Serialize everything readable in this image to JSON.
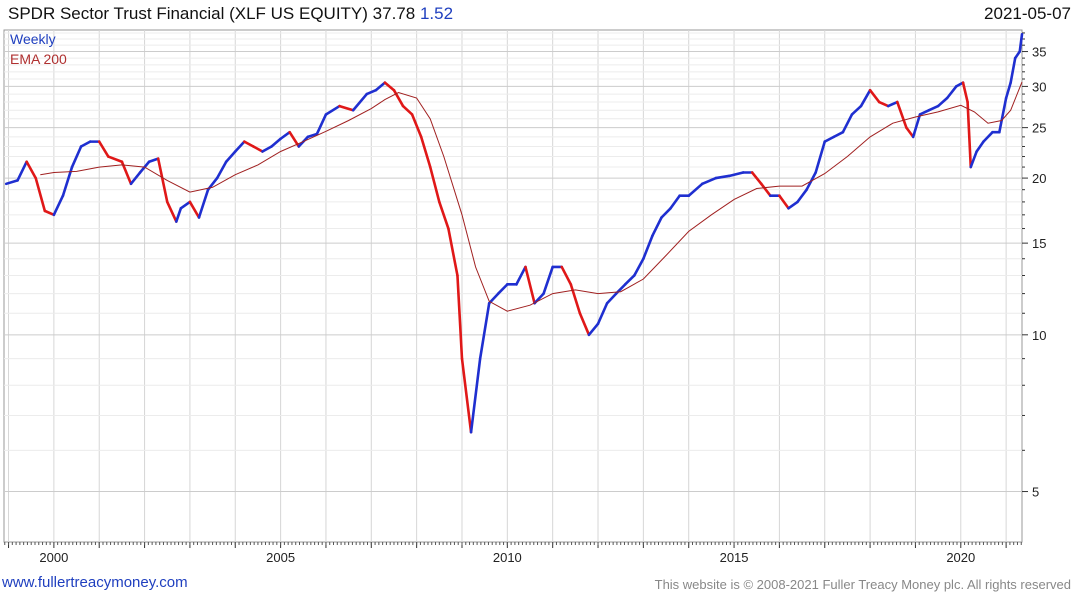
{
  "header": {
    "security": "SPDR Sector Trust Financial (XLF US EQUITY)",
    "last": "37.78",
    "change": "1.52",
    "date": "2021-05-07"
  },
  "legend": {
    "weekly": "Weekly",
    "ema": "EMA 200"
  },
  "footer": {
    "website": "www.fullertreacymoney.com",
    "copyright": "This website is © 2008-2021 Fuller Treacy Money plc. All rights reserved"
  },
  "colors": {
    "up": "#1f2fd0",
    "down": "#e01818",
    "ema": "#a02020",
    "grid": "#d6d6d6",
    "frame": "#999999"
  },
  "chart_data": {
    "type": "line",
    "x_unit": "year",
    "xlim": [
      1998.9,
      2021.35
    ],
    "ylim": [
      4,
      38.5
    ],
    "log_scale": true,
    "grid": true,
    "legend_position": "top-left",
    "x_ticks": [
      2000,
      2005,
      2010,
      2015,
      2020
    ],
    "x_tick_labels": [
      "2000",
      "2005",
      "2010",
      "2015",
      "2020"
    ],
    "y_ticks": [
      5,
      10,
      15,
      20,
      25,
      30,
      35
    ],
    "y_tick_labels": [
      "5",
      "10",
      "15",
      "20",
      "25",
      "30",
      "35"
    ],
    "series": [
      {
        "name": "Weekly",
        "x": [
          1998.95,
          1999.2,
          1999.4,
          1999.6,
          1999.8,
          2000.0,
          2000.2,
          2000.4,
          2000.6,
          2000.8,
          2001.0,
          2001.2,
          2001.5,
          2001.7,
          2001.9,
          2002.1,
          2002.3,
          2002.5,
          2002.7,
          2002.8,
          2003.0,
          2003.2,
          2003.4,
          2003.6,
          2003.8,
          2004.0,
          2004.2,
          2004.4,
          2004.6,
          2004.8,
          2005.0,
          2005.2,
          2005.4,
          2005.6,
          2005.8,
          2006.0,
          2006.3,
          2006.6,
          2006.9,
          2007.1,
          2007.3,
          2007.5,
          2007.7,
          2007.9,
          2008.1,
          2008.3,
          2008.5,
          2008.7,
          2008.9,
          2009.0,
          2009.2,
          2009.4,
          2009.6,
          2009.8,
          2010.0,
          2010.2,
          2010.4,
          2010.6,
          2010.8,
          2011.0,
          2011.2,
          2011.4,
          2011.6,
          2011.8,
          2012.0,
          2012.2,
          2012.4,
          2012.6,
          2012.8,
          2013.0,
          2013.2,
          2013.4,
          2013.6,
          2013.8,
          2014.0,
          2014.3,
          2014.6,
          2014.9,
          2015.2,
          2015.4,
          2015.6,
          2015.8,
          2016.0,
          2016.2,
          2016.4,
          2016.6,
          2016.8,
          2017.0,
          2017.2,
          2017.4,
          2017.6,
          2017.8,
          2018.0,
          2018.2,
          2018.4,
          2018.6,
          2018.8,
          2018.95,
          2019.1,
          2019.3,
          2019.5,
          2019.7,
          2019.9,
          2020.05,
          2020.15,
          2020.22,
          2020.35,
          2020.5,
          2020.7,
          2020.85,
          2021.0,
          2021.1,
          2021.2,
          2021.3,
          2021.35
        ],
        "y": [
          19.5,
          19.8,
          21.5,
          20.0,
          17.3,
          17.0,
          18.5,
          21.0,
          23.0,
          23.5,
          23.5,
          22.0,
          21.5,
          19.5,
          20.5,
          21.5,
          21.8,
          18.0,
          16.5,
          17.5,
          18.0,
          16.8,
          19.0,
          20.0,
          21.5,
          22.5,
          23.5,
          23.0,
          22.5,
          23.0,
          23.8,
          24.5,
          23.0,
          24.0,
          24.3,
          26.5,
          27.5,
          27.0,
          29.0,
          29.5,
          30.5,
          29.5,
          27.5,
          26.5,
          24.0,
          21.0,
          18.0,
          16.0,
          13.0,
          9.0,
          6.5,
          9.0,
          11.5,
          12.0,
          12.5,
          12.5,
          13.5,
          11.5,
          12.0,
          13.5,
          13.5,
          12.5,
          11.0,
          10.0,
          10.5,
          11.5,
          12.0,
          12.5,
          13.0,
          14.0,
          15.5,
          16.8,
          17.5,
          18.5,
          18.5,
          19.5,
          20.0,
          20.2,
          20.5,
          20.5,
          19.5,
          18.5,
          18.5,
          17.5,
          18.0,
          19.0,
          20.5,
          23.5,
          24.0,
          24.5,
          26.5,
          27.5,
          29.5,
          28.0,
          27.5,
          28.0,
          25.0,
          24.0,
          26.5,
          27.0,
          27.5,
          28.5,
          30.0,
          30.5,
          28.0,
          21.0,
          22.5,
          23.5,
          24.5,
          24.5,
          28.5,
          30.5,
          34.0,
          35.0,
          37.78
        ]
      },
      {
        "name": "EMA 200",
        "x": [
          1999.7,
          2000.0,
          2000.5,
          2001.0,
          2001.5,
          2002.0,
          2002.5,
          2003.0,
          2003.5,
          2004.0,
          2004.5,
          2005.0,
          2005.5,
          2006.0,
          2006.5,
          2007.0,
          2007.3,
          2007.6,
          2008.0,
          2008.3,
          2008.6,
          2009.0,
          2009.3,
          2009.6,
          2010.0,
          2010.5,
          2011.0,
          2011.5,
          2012.0,
          2012.5,
          2013.0,
          2013.5,
          2014.0,
          2014.5,
          2015.0,
          2015.5,
          2016.0,
          2016.5,
          2017.0,
          2017.5,
          2018.0,
          2018.5,
          2019.0,
          2019.5,
          2020.0,
          2020.3,
          2020.6,
          2020.9,
          2021.1,
          2021.35
        ],
        "y": [
          20.3,
          20.5,
          20.6,
          21.0,
          21.2,
          21.0,
          19.8,
          18.8,
          19.2,
          20.3,
          21.2,
          22.5,
          23.5,
          24.6,
          25.8,
          27.2,
          28.3,
          29.2,
          28.5,
          26.0,
          22.0,
          17.0,
          13.5,
          11.6,
          11.1,
          11.4,
          12.0,
          12.2,
          12.0,
          12.1,
          12.8,
          14.2,
          15.8,
          17.0,
          18.2,
          19.1,
          19.3,
          19.3,
          20.4,
          22.0,
          24.0,
          25.5,
          26.2,
          26.8,
          27.6,
          26.8,
          25.5,
          25.8,
          27.0,
          30.6
        ]
      }
    ]
  }
}
